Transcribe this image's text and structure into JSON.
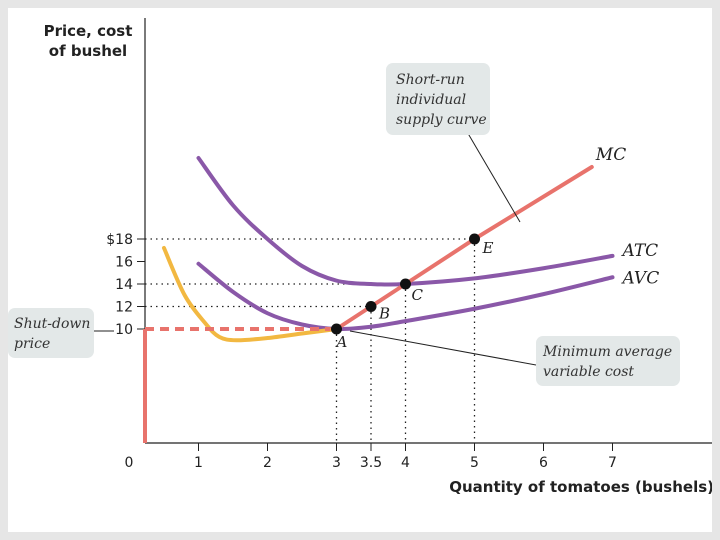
{
  "chart_data": {
    "type": "line",
    "ylabel": [
      "Price, cost",
      "of bushel"
    ],
    "xlabel": "Quantity of tomatoes (bushels)",
    "x_ticks": [
      "0",
      "1",
      "2",
      "3",
      "3.5",
      "4",
      "5",
      "6",
      "7"
    ],
    "x_tick_values": [
      0,
      1,
      2,
      3,
      3.5,
      4,
      5,
      6,
      7
    ],
    "y_ticks": [
      "$18",
      "16",
      "14",
      "12",
      "10"
    ],
    "y_tick_values": [
      18,
      16,
      14,
      12,
      10
    ],
    "xlim": [
      0,
      8.5
    ],
    "ylim": [
      6,
      25
    ],
    "series": [
      {
        "name": "MC",
        "color": "#e8736c",
        "points": [
          [
            0.5,
            17.2
          ],
          [
            0.8,
            13
          ],
          [
            1.1,
            10.5
          ],
          [
            1.3,
            9.3
          ],
          [
            1.55,
            9.0
          ],
          [
            2.0,
            9.2
          ],
          [
            2.5,
            9.6
          ],
          [
            3.0,
            10
          ],
          [
            3.5,
            12
          ],
          [
            4,
            14
          ],
          [
            5,
            18
          ],
          [
            6.7,
            24.4
          ]
        ]
      },
      {
        "name": "ATC",
        "color": "#8a58a8",
        "points": [
          [
            1,
            25.2
          ],
          [
            1.5,
            21.0
          ],
          [
            2,
            18.0
          ],
          [
            2.5,
            15.6
          ],
          [
            3,
            14.3
          ],
          [
            3.5,
            14.0
          ],
          [
            4,
            14
          ],
          [
            5,
            14.5
          ],
          [
            6,
            15.4
          ],
          [
            7,
            16.5
          ]
        ]
      },
      {
        "name": "AVC",
        "color": "#8a58a8",
        "points": [
          [
            1,
            15.8
          ],
          [
            1.5,
            13.3
          ],
          [
            2,
            11.4
          ],
          [
            2.5,
            10.4
          ],
          [
            3,
            10
          ],
          [
            3.5,
            10.2
          ],
          [
            4,
            10.7
          ],
          [
            5,
            11.8
          ],
          [
            6,
            13.1
          ],
          [
            7,
            14.6
          ]
        ]
      }
    ],
    "points": [
      {
        "label": "A",
        "x": 3,
        "y": 10
      },
      {
        "label": "B",
        "x": 3.5,
        "y": 12
      },
      {
        "label": "C",
        "x": 4,
        "y": 14
      },
      {
        "label": "E",
        "x": 5,
        "y": 18
      }
    ],
    "supply_curve": {
      "x_from": 3,
      "x_to": 6.7
    },
    "callouts": [
      {
        "lines": [
          "Short-run",
          "individual",
          "supply curve"
        ]
      },
      {
        "lines": [
          "Shut-down",
          "price"
        ]
      },
      {
        "lines": [
          "Minimum average",
          "variable cost"
        ]
      }
    ],
    "colors": {
      "mc": "#e8736c",
      "mc_below_shutdown": "#f2b841",
      "cost_curves": "#8a58a8",
      "callout_bg": "#e3e8e8",
      "axis": "#222222"
    }
  }
}
